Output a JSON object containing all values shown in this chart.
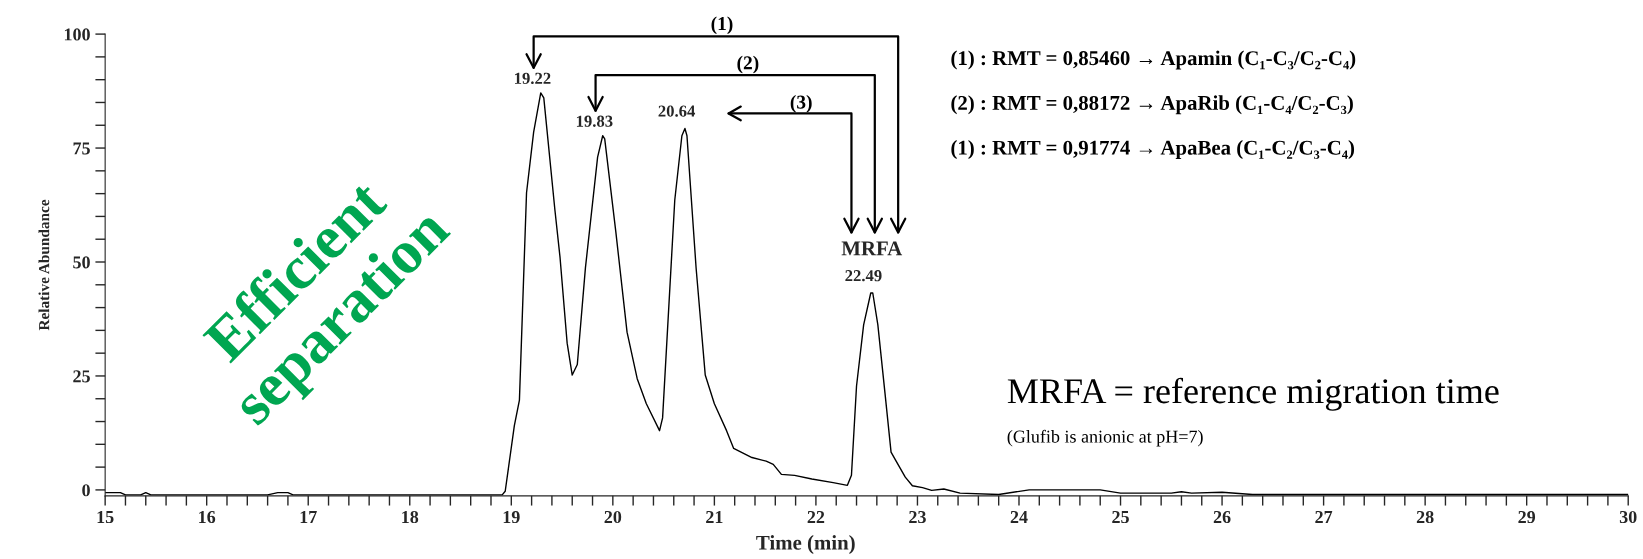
{
  "chart_data": {
    "type": "line",
    "xlabel": "Time (min)",
    "ylabel": "Relative Abundance",
    "xlim": [
      15,
      30
    ],
    "ylim": [
      -1.3,
      100
    ],
    "xticks": [
      15,
      {
        "value": 15.2,
        "label": null
      },
      {
        "value": 15.4,
        "label": null
      },
      {
        "value": 15.6,
        "label": null
      },
      {
        "value": 15.8,
        "label": null
      },
      16,
      {
        "value": 16.2,
        "label": null
      },
      {
        "value": 16.4,
        "label": null
      },
      {
        "value": 16.6,
        "label": null
      },
      {
        "value": 16.8,
        "label": null
      },
      17,
      {
        "value": 17.2,
        "label": null
      },
      {
        "value": 17.4,
        "label": null
      },
      {
        "value": 17.6,
        "label": null
      },
      {
        "value": 17.8,
        "label": null
      },
      18,
      {
        "value": 18.2,
        "label": null
      },
      {
        "value": 18.4,
        "label": null
      },
      {
        "value": 18.6,
        "label": null
      },
      {
        "value": 18.8,
        "label": null
      },
      19,
      {
        "value": 19.2,
        "label": null
      },
      {
        "value": 19.4,
        "label": null
      },
      {
        "value": 19.6,
        "label": null
      },
      {
        "value": 19.8,
        "label": null
      },
      20,
      {
        "value": 20.2,
        "label": null
      },
      {
        "value": 20.4,
        "label": null
      },
      {
        "value": 20.6,
        "label": null
      },
      {
        "value": 20.8,
        "label": null
      },
      21,
      {
        "value": 21.2,
        "label": null
      },
      {
        "value": 21.4,
        "label": null
      },
      {
        "value": 21.6,
        "label": null
      },
      {
        "value": 21.8,
        "label": null
      },
      22,
      {
        "value": 22.2,
        "label": null
      },
      {
        "value": 22.4,
        "label": null
      },
      {
        "value": 22.6,
        "label": null
      },
      {
        "value": 22.8,
        "label": null
      },
      23,
      {
        "value": 23.2,
        "label": null
      },
      {
        "value": 23.4,
        "label": null
      },
      {
        "value": 23.6,
        "label": null
      },
      {
        "value": 23.8,
        "label": null
      },
      24,
      {
        "value": 24.2,
        "label": null
      },
      {
        "value": 24.4,
        "label": null
      },
      {
        "value": 24.6,
        "label": null
      },
      {
        "value": 24.8,
        "label": null
      },
      25,
      {
        "value": 25.2,
        "label": null
      },
      {
        "value": 25.4,
        "label": null
      },
      {
        "value": 25.6,
        "label": null
      },
      {
        "value": 25.8,
        "label": null
      },
      26,
      {
        "value": 26.2,
        "label": null
      },
      {
        "value": 26.4,
        "label": null
      },
      {
        "value": 26.6,
        "label": null
      },
      {
        "value": 26.8,
        "label": null
      },
      27,
      {
        "value": 27.2,
        "label": null
      },
      {
        "value": 27.4,
        "label": null
      },
      {
        "value": 27.6,
        "label": null
      },
      {
        "value": 27.8,
        "label": null
      },
      28,
      {
        "value": 28.2,
        "label": null
      },
      {
        "value": 28.4,
        "label": null
      },
      {
        "value": 28.6,
        "label": null
      },
      {
        "value": 28.8,
        "label": null
      },
      29,
      {
        "value": 29.2,
        "label": null
      },
      {
        "value": 29.4,
        "label": null
      },
      {
        "value": 29.6,
        "label": null
      },
      {
        "value": 29.8,
        "label": null
      },
      30
    ],
    "yticks": [
      0,
      {
        "value": 5,
        "label": null
      },
      {
        "value": 10,
        "label": null
      },
      {
        "value": 15,
        "label": null
      },
      {
        "value": 20,
        "label": null
      },
      25,
      {
        "value": 30,
        "label": null
      },
      {
        "value": 35,
        "label": null
      },
      {
        "value": 40,
        "label": null
      },
      {
        "value": 45,
        "label": null
      },
      50,
      {
        "value": 55,
        "label": null
      },
      {
        "value": 60,
        "label": null
      },
      {
        "value": 65,
        "label": null
      },
      {
        "value": 70,
        "label": null
      },
      75,
      {
        "value": 80,
        "label": null
      },
      {
        "value": 85,
        "label": null
      },
      {
        "value": 90,
        "label": null
      },
      {
        "value": 95,
        "label": null
      },
      100
    ],
    "grid": false,
    "marker": "none",
    "line_style": "solid",
    "series": [
      {
        "color": "#000000",
        "x": [
          15.0,
          15.15,
          15.2,
          15.35,
          15.4,
          15.45,
          16.6,
          16.7,
          16.8,
          16.85,
          18.91,
          18.94,
          19.03,
          19.08,
          19.15,
          19.22,
          19.29,
          19.32,
          19.43,
          19.48,
          19.55,
          19.6,
          19.65,
          19.73,
          19.85,
          19.9,
          19.92,
          20.03,
          20.14,
          20.24,
          20.33,
          20.46,
          20.49,
          20.61,
          20.68,
          20.71,
          20.73,
          20.82,
          20.91,
          21.0,
          21.12,
          21.19,
          21.37,
          21.51,
          21.58,
          21.66,
          21.79,
          21.96,
          22.17,
          22.31,
          22.35,
          22.4,
          22.47,
          22.54,
          22.56,
          22.61,
          22.68,
          22.74,
          22.79,
          22.88,
          22.95,
          23.05,
          23.14,
          23.26,
          23.42,
          23.8,
          24.1,
          24.8,
          25.0,
          25.5,
          25.6,
          25.7,
          26.0,
          26.3,
          30.0
        ],
        "values": [
          -0.6,
          -0.6,
          -1.1,
          -1.1,
          -0.6,
          -1.1,
          -1.1,
          -0.6,
          -0.6,
          -1.1,
          -1.1,
          -0.3,
          14.1,
          19.7,
          65.2,
          78.5,
          87.1,
          86.0,
          61.3,
          51.0,
          32.2,
          25.2,
          27.5,
          48.7,
          73.0,
          77.7,
          77.0,
          56.5,
          34.6,
          24.4,
          18.9,
          13.0,
          15.8,
          63.6,
          77.7,
          79.3,
          77.7,
          48.7,
          25.2,
          18.9,
          13.0,
          9.1,
          7.1,
          6.3,
          5.6,
          3.4,
          3.2,
          2.4,
          1.6,
          1.0,
          3.2,
          22.8,
          36.2,
          43.2,
          43.2,
          36.2,
          21.3,
          8.3,
          6.3,
          2.8,
          0.9,
          0.5,
          -0.1,
          0.2,
          -0.7,
          -1.0,
          0.0,
          0.0,
          -0.7,
          -0.7,
          -0.4,
          -0.7,
          -0.5,
          -1.0,
          -1.0
        ]
      }
    ],
    "annotations": [
      {
        "text": "19.22",
        "x": 19.29,
        "y": 87.1
      },
      {
        "text": "19.83",
        "x": 19.9,
        "y": 77.7
      },
      {
        "text": "20.64",
        "x": 20.71,
        "y": 79.3
      },
      {
        "text": "22.49",
        "x": 22.55,
        "y": 43.2
      },
      {
        "text": "MRFA",
        "x": 22.55,
        "y": 43.2
      },
      "(1)",
      "(2)",
      "(3)",
      "(1) : RMT = 0,85460 → Apamin (C₁-C₃/C₂-C₄)",
      "(2) : RMT = 0,88172 → ApaRib (C₁-C₄/C₂-C₃)",
      "(1) : RMT = 0,91774 → ApaBea (C₁-C₂/C₃-C₄)",
      "MRFA = reference migration time",
      "(Glufib is anionic at pH=7)",
      "Efficient\nseparation"
    ]
  }
}
